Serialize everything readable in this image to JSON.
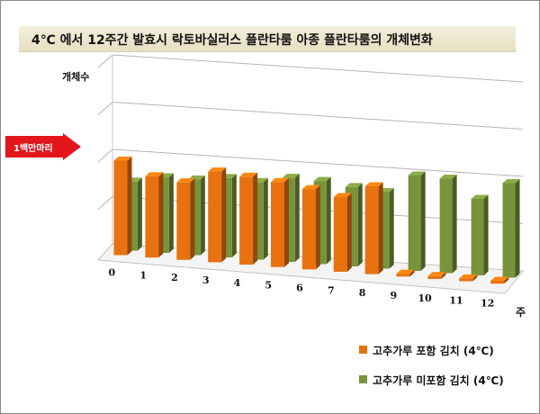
{
  "title": "4℃ 에서 12주간 발효시 락토바실러스 플란타룸 아종 플란타룸의 개체변화",
  "callout": "1백만마리",
  "colors": {
    "orange": "#e8720f",
    "green": "#77933c"
  },
  "chart_data": {
    "type": "bar",
    "title": "4℃ 에서 12주간 발효시 락토바실러스 플란타룸 아종 플란타룸의 개체변화",
    "ylabel": "개체수",
    "xlabel": "주",
    "categories": [
      "0",
      "1",
      "2",
      "3",
      "4",
      "5",
      "6",
      "7",
      "8",
      "9",
      "10",
      "11",
      "12"
    ],
    "series": [
      {
        "name": "고추가루 포함 김치 (4℃)",
        "values": [
          1.0,
          0.86,
          0.82,
          0.96,
          0.93,
          0.9,
          0.85,
          0.79,
          0.93,
          0.03,
          0.03,
          0.03,
          0.03
        ]
      },
      {
        "name": "고추가루 미포함 김치 (4℃)",
        "values": [
          0.73,
          0.8,
          0.8,
          0.84,
          0.82,
          0.89,
          0.88,
          0.84,
          0.81,
          1.01,
          1.0,
          0.81,
          1.0
        ]
      }
    ],
    "ylim": [
      0,
      2.2
    ],
    "grid": true,
    "legend": "bottom-right"
  }
}
